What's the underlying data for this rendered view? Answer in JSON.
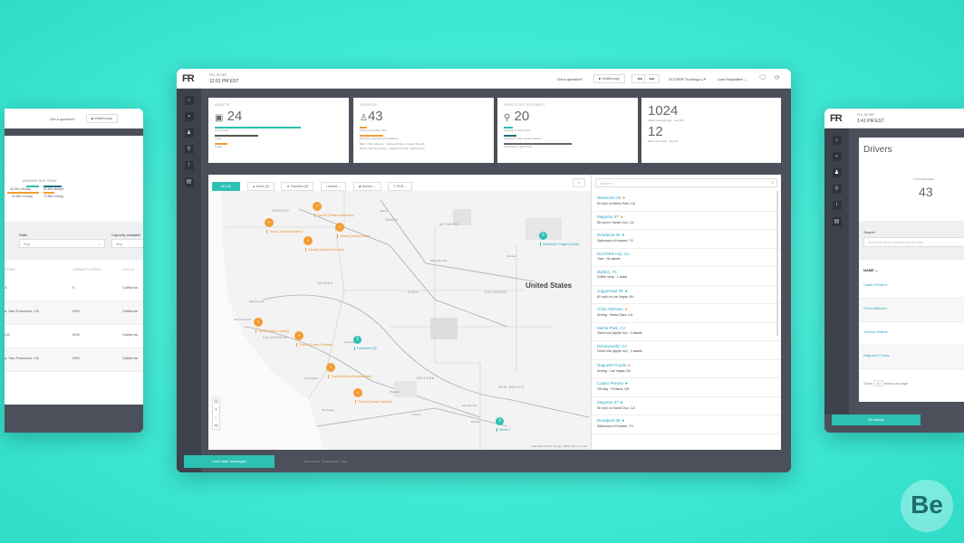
{
  "colors": {
    "accent": "#2cc1b2",
    "orange": "#f39c34",
    "dark": "#4b505b",
    "link": "#2aa6c6"
  },
  "left_window": {
    "question": "Got a question?",
    "walkthrough": "Walkthrough",
    "avg_label": "AVERAGE HOS TODAY",
    "stats": [
      "4h 20m off duty",
      "6h 40m sleeper",
      "4h 25m on duty",
      "7h 58m driving"
    ],
    "filters": [
      {
        "label": "State",
        "value": "Any"
      },
      {
        "label": "Capacity available",
        "value": "Any"
      }
    ],
    "columns": [
      "POINT",
      "CAPACITY FREE",
      "CYCLE"
    ],
    "rows": [
      [
        "A",
        "0",
        "California"
      ],
      [
        "a, San Francisco, CA",
        "25%",
        "California"
      ],
      [
        "CA",
        "50%",
        "California"
      ],
      [
        "a, San Francisco, CA",
        "25%",
        "California"
      ]
    ]
  },
  "header": {
    "logo": "FR",
    "date": "FRI, 28 SEP",
    "time": "12:01 PM EST",
    "question": "Got a question?",
    "walkthrough": "Walkthrough",
    "company": "DCCPER Trucking LLP",
    "user": "Luke Skywalker"
  },
  "sidebar": {
    "icons": [
      "home-icon",
      "truck-icon",
      "driver-icon",
      "poi-icon",
      "alert-icon",
      "document-icon"
    ]
  },
  "cards": [
    {
      "label": "ASSETS",
      "value": "24",
      "lines": [
        "20 en route",
        "4 idle",
        "0 alert"
      ]
    },
    {
      "label": "DRIVERS",
      "value": "43",
      "lines": [
        "5 drivers needing help",
        "8 drivers nearing HoS violations",
        "Best: Chris Atkinson · Joshua Strains · Castro Pereira",
        "Worst: Neil Fernandes · Naguesh Ponds · Ajinya Shet"
      ]
    },
    {
      "label": "POINTS OF INTEREST",
      "value": "20",
      "lines": [
        "8 assets in client hubs",
        "4 assets in fuel / repair stations",
        "16 assets in other POIs"
      ]
    },
    {
      "label": "",
      "value": "1024",
      "sub": "miles covered today · avg 972",
      "value2": "12",
      "sub2": "idle hours today · avg 15"
    }
  ],
  "map_toolbar": {
    "tabs": [
      "All (43)",
      "Alerts (2)",
      "Favorites (3)"
    ],
    "dropdowns": [
      "Assets",
      "Drivers",
      "POIs"
    ]
  },
  "map": {
    "labels": [
      "OREGON",
      "IDAHO",
      "WYOMING",
      "NEVADA",
      "UTAH",
      "COLORADO",
      "CALIFORNIA",
      "ARIZONA",
      "NEW MEXICO",
      "United States",
      "Sacramento",
      "San Francisco",
      "Las Vegas",
      "Los Angeles",
      "San Diego",
      "Phoenix",
      "Tucson",
      "Albuquerque",
      "El Paso",
      "Salt Lake City",
      "Denver",
      "Boise"
    ],
    "markers": [
      "Truck3 (Castro Cammello)",
      "Truck1 (Joshua Strains)",
      "Truck4 (Juliana Spitz)",
      "Truck8 (Harold Delmonte)",
      "Truck2 (Alien Lowery)",
      "Truck5 (Mohan Ramanathan)",
      "Truck6 (Grady Caldwell)",
      "Truck7 (Lenny Rhodes)"
    ],
    "clusters": [
      {
        "count": "5",
        "label": "Wolverine Freight Sprinter"
      },
      {
        "count": "1",
        "label": "Flashover HQ"
      },
      {
        "count": "3",
        "label": "Sacks 7"
      }
    ],
    "attribution": "Map data ©2018 Google, INEGI  Terms of Use"
  },
  "list": {
    "search_placeholder": "Search...",
    "items": [
      {
        "name": "Wolverine 02",
        "sub": "60 mph on Menlo Park, CA",
        "star": "orange"
      },
      {
        "name": "Magneto 07",
        "sub": "58 mph in Santa Cruz, CA",
        "star": "orange"
      },
      {
        "name": "Deadpool 05",
        "sub": "Stationary in Houston, TX",
        "star": "teal"
      },
      {
        "name": "DCCPER HQ, CA",
        "sub": "Yard · No assets",
        "star": ""
      },
      {
        "name": "Burleis, TX",
        "sub": "Coffee shop · 1 asset",
        "star": ""
      },
      {
        "name": "Juggernaut 08",
        "sub": "60 mph on Las Vegas, NV",
        "star": "teal"
      },
      {
        "name": "Chris Atkinson",
        "sub": "Driving · Santa Clara, CA",
        "star": "orange"
      },
      {
        "name": "Menlo Park, CA",
        "sub": "Client hub (Apple Inc) · 2 assets",
        "star": ""
      },
      {
        "name": "Disneyworld, CA",
        "sub": "Client hub (Apple Inc) · 1 assets",
        "star": ""
      },
      {
        "name": "Naguesh Ponds",
        "sub": "Driving · Las Vegas, NV",
        "star": "orange"
      },
      {
        "name": "Castro Pereira",
        "sub": "Off duty · Portland, OR",
        "star": "teal"
      },
      {
        "name": "Magneto 07",
        "sub": "58 mph on Santa Cruz, CA",
        "star": "teal"
      },
      {
        "name": "Deadpool 05",
        "sub": "Stationary in Houston, TX",
        "star": "teal"
      }
    ]
  },
  "footer": {
    "load_older": "Load older messages",
    "links": [
      "Terms of Use",
      "Privacy Notice",
      "Help"
    ]
  },
  "right_window": {
    "logo": "FR",
    "date": "FRI, 28 SEP",
    "time": "1:41 PM EST",
    "title": "Drivers",
    "total_label": "TOTAL DRIVERS",
    "total": "43",
    "search_label": "Search",
    "search_placeholder": "Search by Name, email or license plate",
    "name_col": "NAME",
    "drivers": [
      "Castro Pereira",
      "Chris Atkinson",
      "Joshua Strains",
      "Naguesh Ponds"
    ],
    "show": "Show",
    "per_page": "10",
    "items_per_page": "items per page",
    "all_activity": "All activity"
  },
  "brand_logo": "Be"
}
